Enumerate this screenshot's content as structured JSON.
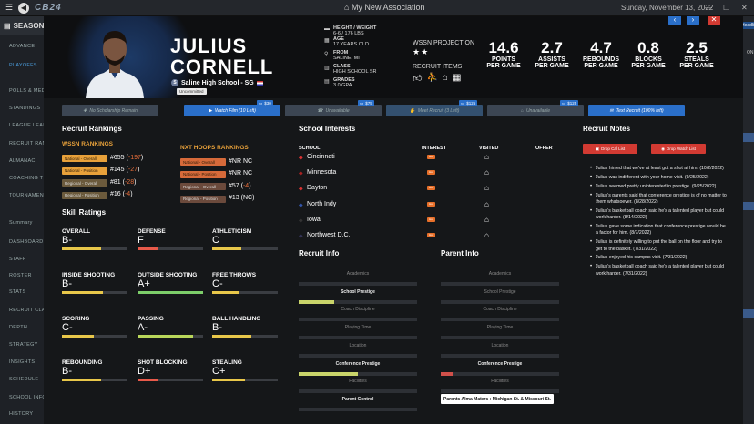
{
  "topbar": {
    "logo": "CB24",
    "association": "My New Association",
    "date": "Sunday, November 13, 2022",
    "win_min": "—",
    "win_max": "☐",
    "win_close": "✕"
  },
  "sidebar": {
    "season": "SEASON",
    "items": [
      "ADVANCE",
      "PLAYOFFS",
      "POLLS & MED",
      "STANDINGS",
      "LEAGUE LEAD",
      "RECRUIT RAN",
      "ALMANAC",
      "COACHING T",
      "TOURNAMEN",
      "Summary",
      "DASHBOARD",
      "STAFF",
      "ROSTER",
      "STATS",
      "RECRUIT CLA",
      "DEPTH",
      "STRATEGY",
      "INSIGHTS",
      "SCHEDULE",
      "SCHOOL INFO",
      "HISTORY"
    ]
  },
  "background": {
    "right_top": "Headlines",
    "right_on": "ON",
    "right_meeting": "Meeting",
    "right_cal": "Cal",
    "right_n1": "Calt",
    "right_n2": "Hist"
  },
  "player": {
    "first": "JULIUS",
    "last": "CORNELL",
    "school": "Saline High School - SG",
    "status": "Uncommitted",
    "bio": [
      {
        "label": "HEIGHT / WEIGHT",
        "value": "6-6 / 176 LBS",
        "icon": "ruler"
      },
      {
        "label": "AGE",
        "value": "17 YEARS OLD",
        "icon": "calendar"
      },
      {
        "label": "FROM",
        "value": "SALINE, MI",
        "icon": "location"
      },
      {
        "label": "CLASS",
        "value": "HIGH SCHOOL SR",
        "icon": "building"
      },
      {
        "label": "GRADES",
        "value": "3.0 GPA",
        "icon": "book"
      }
    ],
    "projection_label": "WSSN PROJECTION",
    "stars": 2,
    "stars_text": "★★",
    "recruit_items_label": "RECRUIT ITEMS",
    "stats": [
      {
        "value": "14.6",
        "label1": "POINTS",
        "label2": "PER GAME"
      },
      {
        "value": "2.7",
        "label1": "ASSISTS",
        "label2": "PER GAME"
      },
      {
        "value": "4.7",
        "label1": "REBOUNDS",
        "label2": "PER GAME"
      },
      {
        "value": "0.8",
        "label1": "BLOCKS",
        "label2": "PER GAME"
      },
      {
        "value": "2.5",
        "label1": "STEALS",
        "label2": "PER GAME"
      }
    ]
  },
  "nav": {
    "prev": "‹",
    "next": "›",
    "close": "✕"
  },
  "actions": [
    {
      "label": "No Scholarship Remain",
      "cost": "",
      "state": "disabled",
      "bg": "#3c4653"
    },
    {
      "label": "Watch Film (10 Left)",
      "cost": "$30",
      "state": "active",
      "bg": "#2a6fc9"
    },
    {
      "label": "Unavailable",
      "cost": "$75",
      "state": "disabled",
      "bg": "#3c4653"
    },
    {
      "label": "Meet Recruit (3 Left)",
      "cost": "$125",
      "state": "disabled",
      "bg": "#33506f"
    },
    {
      "label": "Unavailable",
      "cost": "$125",
      "state": "disabled",
      "bg": "#3c4653"
    },
    {
      "label": "Text Recruit (100% left)",
      "cost": "",
      "state": "active",
      "bg": "#2a6fc9"
    }
  ],
  "rankings": {
    "title": "Recruit Rankings",
    "wssn_title": "WSSN RANKINGS",
    "nxt_title": "NXT HOOPS RANKINGS",
    "wssn": [
      {
        "tag": "National - Overall",
        "value": "#655",
        "change": "-197",
        "color": "#e8a13a"
      },
      {
        "tag": "National - Position",
        "value": "#145",
        "change": "-27",
        "color": "#e8a13a"
      },
      {
        "tag": "Regional - Overall",
        "value": "#81",
        "change": "-28",
        "color": "#6b5a3c"
      },
      {
        "tag": "Regional - Position",
        "value": "#16",
        "change": "-4",
        "color": "#6b5a3c"
      }
    ],
    "nxt": [
      {
        "tag": "National - Overall",
        "value": "#NR NC",
        "change": "",
        "color": "#d66a3a"
      },
      {
        "tag": "National - Position",
        "value": "#NR NC",
        "change": "",
        "color": "#d66a3a"
      },
      {
        "tag": "Regional - Overall",
        "value": "#57",
        "change": "-4",
        "color": "#6b4a3c"
      },
      {
        "tag": "Regional - Position",
        "value": "#13 (NC)",
        "change": "",
        "color": "#6b4a3c"
      }
    ]
  },
  "skills": {
    "title": "Skill Ratings",
    "items": [
      {
        "label": "OVERALL",
        "grade": "B-",
        "level": 0.6,
        "color": "#e8c74a"
      },
      {
        "label": "DEFENSE",
        "grade": "F",
        "level": 0.3,
        "color": "#e85a4a"
      },
      {
        "label": "ATHLETICISM",
        "grade": "C",
        "level": 0.45,
        "color": "#e8c74a"
      },
      {
        "label": "INSIDE SHOOTING",
        "grade": "B-",
        "level": 0.62,
        "color": "#e8c74a"
      },
      {
        "label": "OUTSIDE SHOOTING",
        "grade": "A+",
        "level": 1.0,
        "color": "#7dce6a"
      },
      {
        "label": "FREE THROWS",
        "grade": "C-",
        "level": 0.4,
        "color": "#e8c74a"
      },
      {
        "label": "SCORING",
        "grade": "C-",
        "level": 0.48,
        "color": "#e8c74a"
      },
      {
        "label": "PASSING",
        "grade": "A-",
        "level": 0.85,
        "color": "#b9d65a"
      },
      {
        "label": "BALL HANDLING",
        "grade": "B-",
        "level": 0.6,
        "color": "#e8c74a"
      },
      {
        "label": "REBOUNDING",
        "grade": "B-",
        "level": 0.6,
        "color": "#e8c74a"
      },
      {
        "label": "SHOT BLOCKING",
        "grade": "D+",
        "level": 0.32,
        "color": "#e85a4a"
      },
      {
        "label": "STEALING",
        "grade": "C+",
        "level": 0.5,
        "color": "#e8c74a"
      }
    ]
  },
  "school_interests": {
    "title": "School Interests",
    "col_school": "SCHOOL",
    "col_interest": "INTEREST",
    "col_visited": "VISITED",
    "col_offer": "OFFER",
    "rows": [
      {
        "name": "Cincinnati",
        "interest": "Hot",
        "logo_color": "#d33"
      },
      {
        "name": "Minnesota",
        "interest": "Hot",
        "logo_color": "#a22"
      },
      {
        "name": "Dayton",
        "interest": "Hot",
        "logo_color": "#d33"
      },
      {
        "name": "North Indy",
        "interest": "Hot",
        "logo_color": "#35a"
      },
      {
        "name": "Iowa",
        "interest": "Hot",
        "logo_color": "#333"
      },
      {
        "name": "Northwest D.C.",
        "interest": "Hot",
        "logo_color": "#335"
      }
    ]
  },
  "recruit_info": {
    "title": "Recruit Info",
    "items": [
      {
        "label": "Academics",
        "bold": false,
        "level": 0
      },
      {
        "label": "School Prestige",
        "bold": true,
        "level": 0.3
      },
      {
        "label": "Coach Discipline",
        "bold": false,
        "level": 0
      },
      {
        "label": "Playing Time",
        "bold": false,
        "level": 0
      },
      {
        "label": "Location",
        "bold": false,
        "level": 0
      },
      {
        "label": "Conference Prestige",
        "bold": true,
        "level": 0.5
      },
      {
        "label": "Facilities",
        "bold": false,
        "level": 0
      },
      {
        "label": "Parent Control",
        "bold": true,
        "level": 0
      }
    ]
  },
  "parent_info": {
    "title": "Parent Info",
    "items": [
      {
        "label": "Academics",
        "bold": false,
        "level": 0
      },
      {
        "label": "School Prestige",
        "bold": false,
        "level": 0
      },
      {
        "label": "Coach Discipline",
        "bold": false,
        "level": 0
      },
      {
        "label": "Playing Time",
        "bold": false,
        "level": 0
      },
      {
        "label": "Location",
        "bold": false,
        "level": 0
      },
      {
        "label": "Conference Prestige",
        "bold": true,
        "level": 0.1
      },
      {
        "label": "Facilities",
        "bold": false,
        "level": 0
      }
    ],
    "alma_maters": "Parents Alma Maters : Michigan St. & Missouri St."
  },
  "notes": {
    "title": "Recruit Notes",
    "drop_cal": "Drop Cal List",
    "drop_watch": "Drop Watch List",
    "items": [
      "Julius hinted that we've at least got a shot at him. (10/2/2022)",
      "Julius was indifferent with your home visit. (9/25/2022)",
      "Julius seemed pretty uninterested in prestige. (9/25/2022)",
      "Julius's parents said that conference prestige is of no matter to them whatsoever. (8/28/2022)",
      "Julius's basketball coach said he's a talented player but could work harder. (8/14/2022)",
      "Julius gave some indication that conference prestige would be a factor for him. (8/7/2022)",
      "Julius is definitely willing to put the ball on the floor and try to get to the basket. (7/31/2022)",
      "Julius enjoyed his campus visit. (7/31/2022)",
      "Julius's basketball coach said he's a talented player but could work harder. (7/31/2022)"
    ]
  }
}
